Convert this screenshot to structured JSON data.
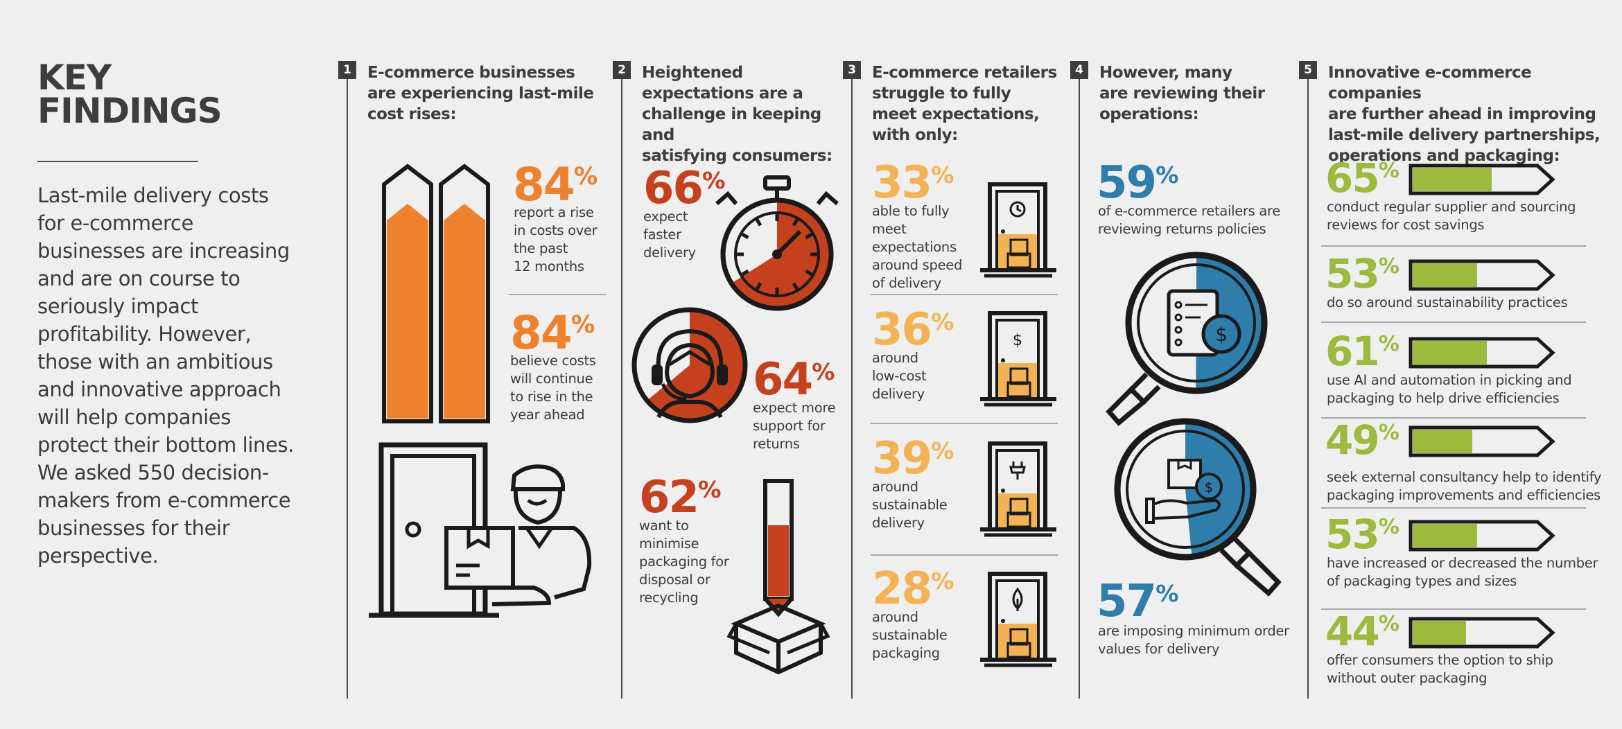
{
  "title": "KEY\nFINDINGS",
  "intro": "Last-mile delivery costs for e-commerce businesses are increasing and are on course to seriously impact profitability. However, those with an ambitious and innovative approach will help companies protect their bottom lines. We asked 550 decision-makers from e-commerce businesses for their perspective.",
  "colors": {
    "orange": "#ee812e",
    "red": "#c5411e",
    "amber": "#f3b355",
    "blue": "#2f7dab",
    "green": "#9cba3d",
    "dark": "#1a1a1a"
  },
  "sections": [
    {
      "number": "1",
      "heading": "E-commerce businesses\nare experiencing last-mile\ncost rises:",
      "stats": [
        {
          "value": "84",
          "unit": "%",
          "label": "report a rise\nin costs over\nthe past\n12 months"
        },
        {
          "value": "84",
          "unit": "%",
          "label": "believe costs\nwill continue\nto rise in the\nyear ahead"
        }
      ],
      "icons": [
        "rising-arrows-icon",
        "delivery-person-icon"
      ]
    },
    {
      "number": "2",
      "heading": "Heightened\nexpectations are a\nchallenge in keeping and\nsatisfying consumers:",
      "stats": [
        {
          "value": "66",
          "unit": "%",
          "label": "expect\nfaster\ndelivery",
          "fraction": 0.66
        },
        {
          "value": "64",
          "unit": "%",
          "label": "expect more\nsupport for\nreturns",
          "fraction": 0.64
        },
        {
          "value": "62",
          "unit": "%",
          "label": "want to minimise\npackaging for\ndisposal or\nrecycling",
          "fraction": 0.62
        }
      ],
      "icons": [
        "stopwatch-icon",
        "headset-agent-icon",
        "packaging-tube-icon"
      ]
    },
    {
      "number": "3",
      "heading": "E-commerce retailers\nstruggle to fully\nmeet expectations,\nwith only:",
      "stats": [
        {
          "value": "33",
          "unit": "%",
          "label": "able to fully meet\nexpectations\naround speed\nof delivery",
          "icon": "clock-door-icon"
        },
        {
          "value": "36",
          "unit": "%",
          "label": "around\nlow-cost\ndelivery",
          "icon": "dollar-door-icon"
        },
        {
          "value": "39",
          "unit": "%",
          "label": "around\nsustainable\ndelivery",
          "icon": "plug-door-icon"
        },
        {
          "value": "28",
          "unit": "%",
          "label": "around\nsustainable\npackaging",
          "icon": "leaf-door-icon"
        }
      ]
    },
    {
      "number": "4",
      "heading": "However, many\nare reviewing their\noperations:",
      "stats": [
        {
          "value": "59",
          "unit": "%",
          "label": "of e-commerce retailers are\nreviewing returns policies",
          "fraction": 0.59
        },
        {
          "value": "57",
          "unit": "%",
          "label": "are imposing minimum order\nvalues for delivery",
          "fraction": 0.57
        }
      ],
      "icons": [
        "magnifier-policy-icon",
        "magnifier-order-icon"
      ]
    },
    {
      "number": "5",
      "heading": "Innovative e-commerce companies\nare further ahead in improving\nlast-mile delivery partnerships,\noperations and packaging:",
      "stats": [
        {
          "value": "65",
          "unit": "%",
          "label": "conduct regular supplier and sourcing\nreviews for cost savings",
          "fraction": 0.65
        },
        {
          "value": "53",
          "unit": "%",
          "label": "do so around sustainability practices",
          "fraction": 0.53
        },
        {
          "value": "61",
          "unit": "%",
          "label": "use AI and automation in picking and\npackaging to help drive efficiencies",
          "fraction": 0.61
        },
        {
          "value": "49",
          "unit": "%",
          "label": "seek external consultancy help to identify\npackaging improvements and efficiencies",
          "fraction": 0.49
        },
        {
          "value": "53",
          "unit": "%",
          "label": "have increased or decreased the number\nof packaging types and sizes",
          "fraction": 0.53
        },
        {
          "value": "44",
          "unit": "%",
          "label": "offer consumers the option to ship\nwithout outer packaging",
          "fraction": 0.44
        }
      ]
    }
  ]
}
